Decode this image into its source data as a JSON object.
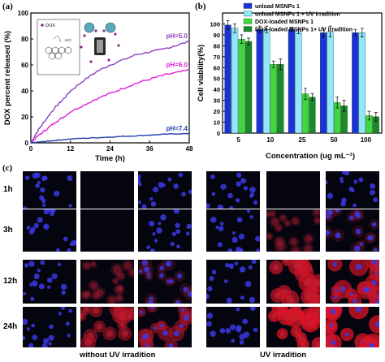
{
  "panel_letters": {
    "a": "(a)",
    "b": "(b)",
    "c": "(c)"
  },
  "chart_data": [
    {
      "type": "line",
      "xlabel": "Time (h)",
      "ylabel": "DOX percent released (%)",
      "xlim": [
        0,
        48
      ],
      "ylim": [
        0,
        100
      ],
      "x_ticks": [
        0,
        12,
        24,
        36,
        48
      ],
      "y_ticks": [
        0,
        20,
        40,
        60,
        80,
        100
      ],
      "series": [
        {
          "name": "pH=5.0",
          "color": "#8a3ec0",
          "x": [
            0,
            2,
            4,
            6,
            8,
            10,
            12,
            16,
            20,
            24,
            28,
            32,
            36,
            40,
            44,
            48
          ],
          "y": [
            0,
            9,
            16,
            23,
            29,
            34,
            40,
            48,
            55,
            60,
            64,
            68,
            70,
            72,
            75,
            78
          ]
        },
        {
          "name": "pH=6.0",
          "color": "#e020d8",
          "x": [
            0,
            2,
            4,
            6,
            8,
            10,
            12,
            16,
            20,
            24,
            28,
            32,
            36,
            40,
            44,
            48
          ],
          "y": [
            0,
            5,
            9,
            13,
            17,
            20,
            24,
            29,
            34,
            38,
            42,
            46,
            49,
            52,
            54,
            56
          ]
        },
        {
          "name": "pH=7.4",
          "color": "#2040a8",
          "x": [
            0,
            2,
            4,
            6,
            8,
            12,
            16,
            20,
            24,
            28,
            32,
            36,
            40,
            44,
            48
          ],
          "y": [
            0,
            0.5,
            1,
            1.5,
            2,
            3,
            3.5,
            4,
            4.5,
            5,
            5.5,
            6,
            6.5,
            7,
            7
          ]
        }
      ],
      "inset": {
        "drug_label": "DOX",
        "salt_label": "HCl"
      }
    },
    {
      "type": "bar",
      "xlabel": "Concentration  (ug mL⁻¹)",
      "ylabel": "Cell viability(%)",
      "ylim": [
        0,
        110
      ],
      "y_ticks": [
        0,
        10,
        20,
        30,
        40,
        50,
        60,
        70,
        80,
        90,
        100
      ],
      "categories": [
        "5",
        "10",
        "25",
        "50",
        "100"
      ],
      "legend_position": "top-right",
      "series": [
        {
          "name": "unload MSNPs 1",
          "color": "#1a33d6",
          "values": [
            99,
            95,
            95,
            92,
            92
          ],
          "errors": [
            4,
            3,
            2,
            4,
            3
          ]
        },
        {
          "name": "unload MSNPs 1 + UV irradition",
          "color": "#8de8f8",
          "values": [
            96,
            95,
            93,
            93,
            92
          ],
          "errors": [
            4,
            3,
            2,
            5,
            4
          ]
        },
        {
          "name": "DOX-loaded  MSNPs 1",
          "color": "#3ed83e",
          "values": [
            86,
            63,
            36,
            28,
            16
          ],
          "errors": [
            4,
            3,
            5,
            5,
            4
          ]
        },
        {
          "name": "DOX-loaded  MSNPs 1+ UV irradition",
          "color": "#1a8a26",
          "values": [
            84,
            63,
            33,
            25,
            15
          ],
          "errors": [
            3,
            5,
            3,
            5,
            4
          ]
        }
      ]
    }
  ],
  "panel_c": {
    "row_labels": [
      "1h",
      "3h",
      "12h",
      "24h"
    ],
    "group_labels": [
      "without UV irradition",
      "UV irradition"
    ],
    "red_intensity_left": [
      0.0,
      0.05,
      0.15,
      0.55
    ],
    "red_intensity_right": [
      0.05,
      0.15,
      0.75,
      0.85
    ]
  }
}
